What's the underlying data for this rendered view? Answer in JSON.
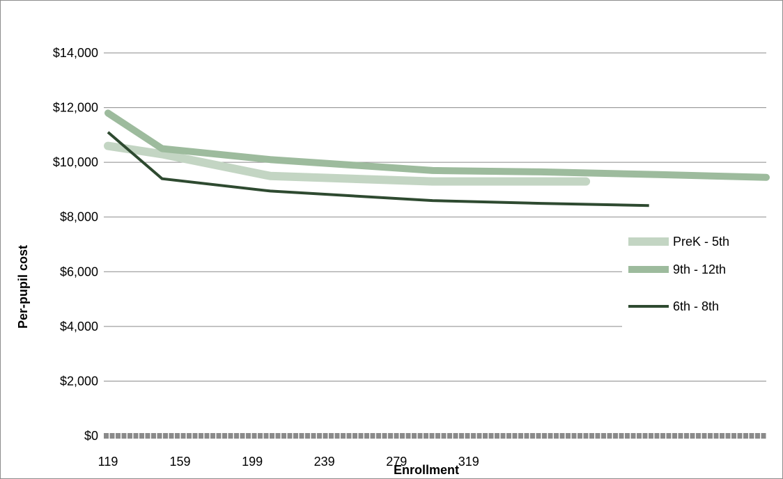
{
  "chart_data": {
    "type": "line",
    "title": "",
    "xlabel": "Enrollment",
    "ylabel": "Per-pupil cost",
    "ylim": [
      0,
      14000
    ],
    "yticks": [
      {
        "value": 0,
        "label": "$0"
      },
      {
        "value": 2000,
        "label": "$2,000"
      },
      {
        "value": 4000,
        "label": "$4,000"
      },
      {
        "value": 6000,
        "label": "$6,000"
      },
      {
        "value": 8000,
        "label": "$8,000"
      },
      {
        "value": 10000,
        "label": "$10,000"
      },
      {
        "value": 12000,
        "label": "$12,000"
      },
      {
        "value": 14000,
        "label": "$14,000"
      }
    ],
    "x_start": 119,
    "x_end": 484,
    "xticks": [
      {
        "value": 119,
        "label": "119"
      },
      {
        "value": 159,
        "label": "159"
      },
      {
        "value": 199,
        "label": "199"
      },
      {
        "value": 239,
        "label": "239"
      },
      {
        "value": 279,
        "label": "279"
      },
      {
        "value": 319,
        "label": "319"
      }
    ],
    "grid": true,
    "legend_position": "right",
    "series": [
      {
        "name": "PreK - 5th",
        "color": "#c3d5c3",
        "width": 12,
        "points": [
          [
            119,
            10600
          ],
          [
            149,
            10300
          ],
          [
            209,
            9500
          ],
          [
            299,
            9300
          ],
          [
            384,
            9300
          ]
        ]
      },
      {
        "name": "9th - 12th",
        "color": "#9dbb9d",
        "width": 10,
        "points": [
          [
            119,
            11800
          ],
          [
            149,
            10500
          ],
          [
            209,
            10100
          ],
          [
            299,
            9700
          ],
          [
            359,
            9650
          ],
          [
            424,
            9550
          ],
          [
            484,
            9450
          ]
        ]
      },
      {
        "name": "6th - 8th",
        "color": "#2e4a30",
        "width": 4,
        "points": [
          [
            119,
            11100
          ],
          [
            149,
            9400
          ],
          [
            209,
            8950
          ],
          [
            299,
            8600
          ],
          [
            359,
            8500
          ],
          [
            419,
            8420
          ]
        ]
      }
    ]
  }
}
